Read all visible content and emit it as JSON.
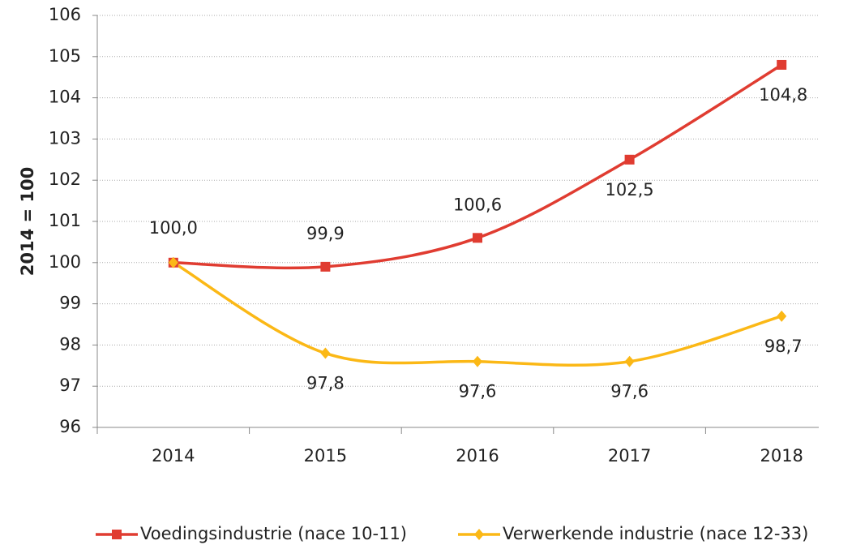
{
  "chart_data": {
    "type": "line",
    "y_label": "2014 = 100",
    "categories": [
      "2014",
      "2015",
      "2016",
      "2017",
      "2018"
    ],
    "series": [
      {
        "name": "Voedingsindustrie (nace 10-11)",
        "color": "#e03c31",
        "marker": "square",
        "values": [
          100.0,
          99.9,
          100.6,
          102.5,
          104.8
        ],
        "value_labels": [
          "100,0",
          "99,9",
          "100,6",
          "102,5",
          "104,8"
        ]
      },
      {
        "name": "Verwerkende industrie (nace 12-33)",
        "color": "#fbb816",
        "marker": "diamond",
        "values": [
          100.0,
          97.8,
          97.6,
          97.6,
          98.7
        ],
        "value_labels": [
          "100,0",
          "97,8",
          "97,6",
          "97,6",
          "98,7"
        ]
      }
    ],
    "ylim": [
      96,
      106
    ],
    "yticks": [
      96,
      97,
      98,
      99,
      100,
      101,
      102,
      103,
      104,
      105,
      106
    ],
    "grid": true,
    "smooth": true,
    "legend": "bottom"
  }
}
